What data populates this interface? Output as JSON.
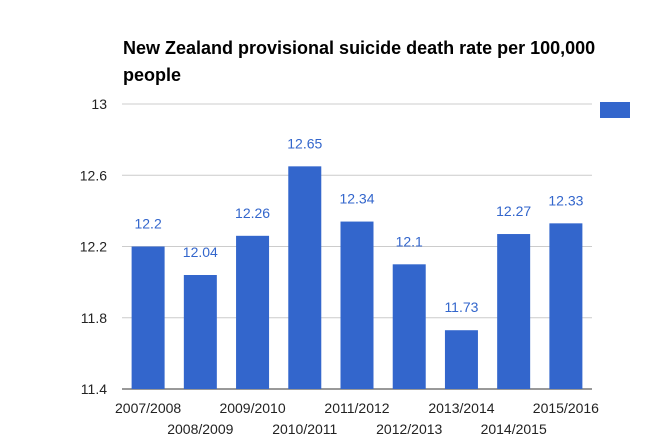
{
  "chart_data": {
    "type": "bar",
    "title": "New Zealand provisional suicide death rate per 100,000 people",
    "categories": [
      "2007/2008",
      "2008/2009",
      "2009/2010",
      "2010/2011",
      "2011/2012",
      "2012/2013",
      "2013/2014",
      "2014/2015",
      "2015/2016"
    ],
    "series": [
      {
        "values": [
          12.2,
          12.04,
          12.26,
          12.65,
          12.34,
          12.1,
          11.73,
          12.27,
          12.33
        ],
        "color": "#3366cc"
      }
    ],
    "data_labels": [
      "12.2",
      "12.04",
      "12.26",
      "12.65",
      "12.34",
      "12.1",
      "11.73",
      "12.27",
      "12.33"
    ],
    "xlabel": "",
    "ylabel": "",
    "ylim": [
      11.4,
      13
    ],
    "y_ticks": [
      11.4,
      11.8,
      12.2,
      12.6,
      13
    ],
    "y_tick_labels": [
      "11.4",
      "11.8",
      "12.2",
      "12.6",
      "13"
    ],
    "grid": true,
    "legend": {
      "position": "top-right",
      "entries": [
        {
          "name": "",
          "color": "#3366cc"
        }
      ]
    }
  }
}
